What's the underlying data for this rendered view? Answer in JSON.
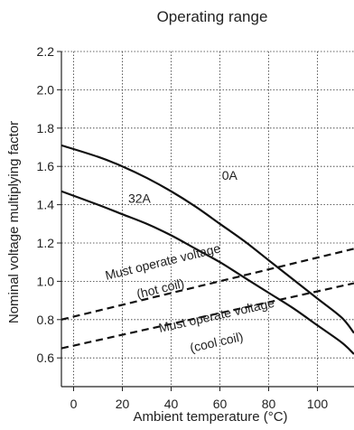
{
  "chart_data": {
    "type": "line",
    "title": "Operating range",
    "xlabel": "Ambient temperature (°C)",
    "ylabel": "Nominal voltage multiplying factor",
    "xlim": [
      -5,
      115
    ],
    "ylim": [
      0.45,
      2.2
    ],
    "xticks": [
      0,
      20,
      40,
      60,
      80,
      100
    ],
    "yticks": [
      0.6,
      0.8,
      1.0,
      1.2,
      1.4,
      1.6,
      1.8,
      2.0,
      2.2
    ],
    "xtick_labels": [
      "0",
      "20",
      "40",
      "60",
      "80",
      "100"
    ],
    "ytick_labels": [
      "0.6",
      "0.8",
      "1.0",
      "1.2",
      "1.4",
      "1.6",
      "1.8",
      "2.0",
      "2.2"
    ],
    "grid": true,
    "legend": "none",
    "series": [
      {
        "name": "0A",
        "style": "solid",
        "x": [
          -5,
          10,
          20,
          30,
          40,
          50,
          60,
          70,
          80,
          90,
          100,
          110,
          115
        ],
        "y": [
          1.71,
          1.65,
          1.6,
          1.54,
          1.47,
          1.39,
          1.3,
          1.21,
          1.11,
          1.01,
          0.91,
          0.81,
          0.73
        ]
      },
      {
        "name": "32A",
        "style": "solid",
        "x": [
          -5,
          10,
          20,
          30,
          40,
          50,
          60,
          70,
          80,
          90,
          100,
          110,
          115
        ],
        "y": [
          1.47,
          1.4,
          1.35,
          1.3,
          1.24,
          1.17,
          1.1,
          1.02,
          0.94,
          0.86,
          0.77,
          0.68,
          0.62
        ]
      },
      {
        "name": "Must operate voltage (hot coil)",
        "style": "dashed",
        "x": [
          -5,
          115
        ],
        "y": [
          0.8,
          1.17
        ]
      },
      {
        "name": "Must operate voltage (cool coil)",
        "style": "dashed",
        "x": [
          -5,
          115
        ],
        "y": [
          0.65,
          0.99
        ]
      }
    ],
    "annotations": [
      {
        "id": "label-0a",
        "text": "0A",
        "x": 64,
        "y": 1.53
      },
      {
        "id": "label-32a",
        "text": "32A",
        "x": 27,
        "y": 1.41
      },
      {
        "id": "label-hot-1",
        "text": "Must operate voltage",
        "x": 37,
        "y": 1.08
      },
      {
        "id": "label-hot-2",
        "text": "(hot coil)",
        "x": 36,
        "y": 0.94
      },
      {
        "id": "label-cool-1",
        "text": "Must operate voltage",
        "x": 59,
        "y": 0.8
      },
      {
        "id": "label-cool-2",
        "text": "(cool coil)",
        "x": 59,
        "y": 0.66
      }
    ]
  }
}
